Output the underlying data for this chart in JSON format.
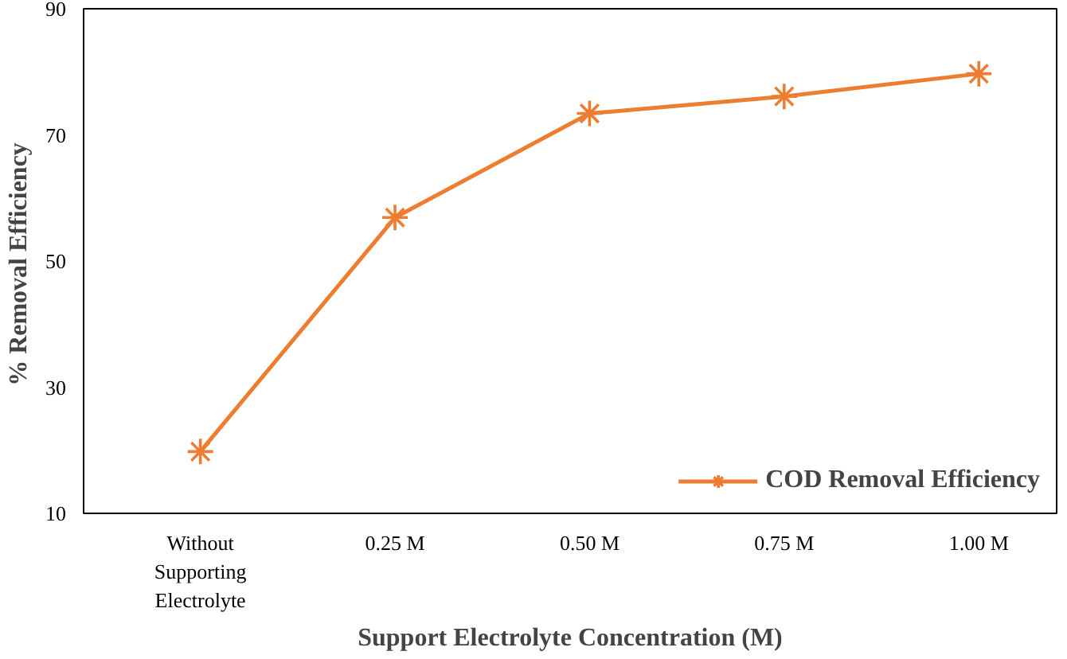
{
  "chart_data": {
    "type": "line",
    "xlabel": "Support Electrolyte Concentration (M)",
    "ylabel": "%  Removal Efficiency",
    "categories": [
      "Without Supporting Electrolyte",
      "0.25 M",
      "0.50 M",
      "0.75 M",
      "1.00 M"
    ],
    "series": [
      {
        "name": "COD Removal Efficiency",
        "color": "#ed7d31",
        "values": [
          19.8,
          56.9,
          73.4,
          76.1,
          79.7
        ]
      }
    ],
    "ylim": [
      10,
      90
    ],
    "yticks": [
      10,
      30,
      50,
      70,
      90
    ],
    "grid": false,
    "legend": "bottom right",
    "marker": "cross",
    "line_style": "solid"
  }
}
